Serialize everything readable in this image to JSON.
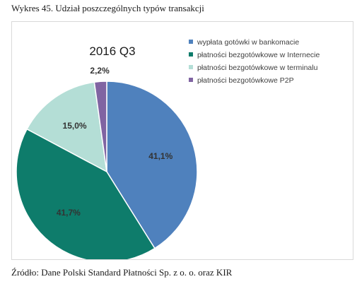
{
  "caption": "Wykres 45. Udział poszczególnych typów transakcji",
  "source": "Źródło: Dane Polski Standard Płatności Sp. z o. o. oraz KIR",
  "chart_data": {
    "type": "pie",
    "title": "2016 Q3",
    "legend_position": "top-right",
    "slices": [
      {
        "label": "wypłata gotówki w bankomacie",
        "value": 41.1,
        "value_label": "41,1%",
        "color": "#4F81BD"
      },
      {
        "label": "płatności bezgotówkowe w Internecie",
        "value": 41.7,
        "value_label": "41,7%",
        "color": "#0E7C6B"
      },
      {
        "label": "płatności bezgotówkowe w terminalu",
        "value": 15.0,
        "value_label": "15,0%",
        "color": "#B4DED6"
      },
      {
        "label": "płatności bezgotówkowe P2P",
        "value": 2.2,
        "value_label": "2,2%",
        "color": "#8064A2"
      }
    ]
  }
}
